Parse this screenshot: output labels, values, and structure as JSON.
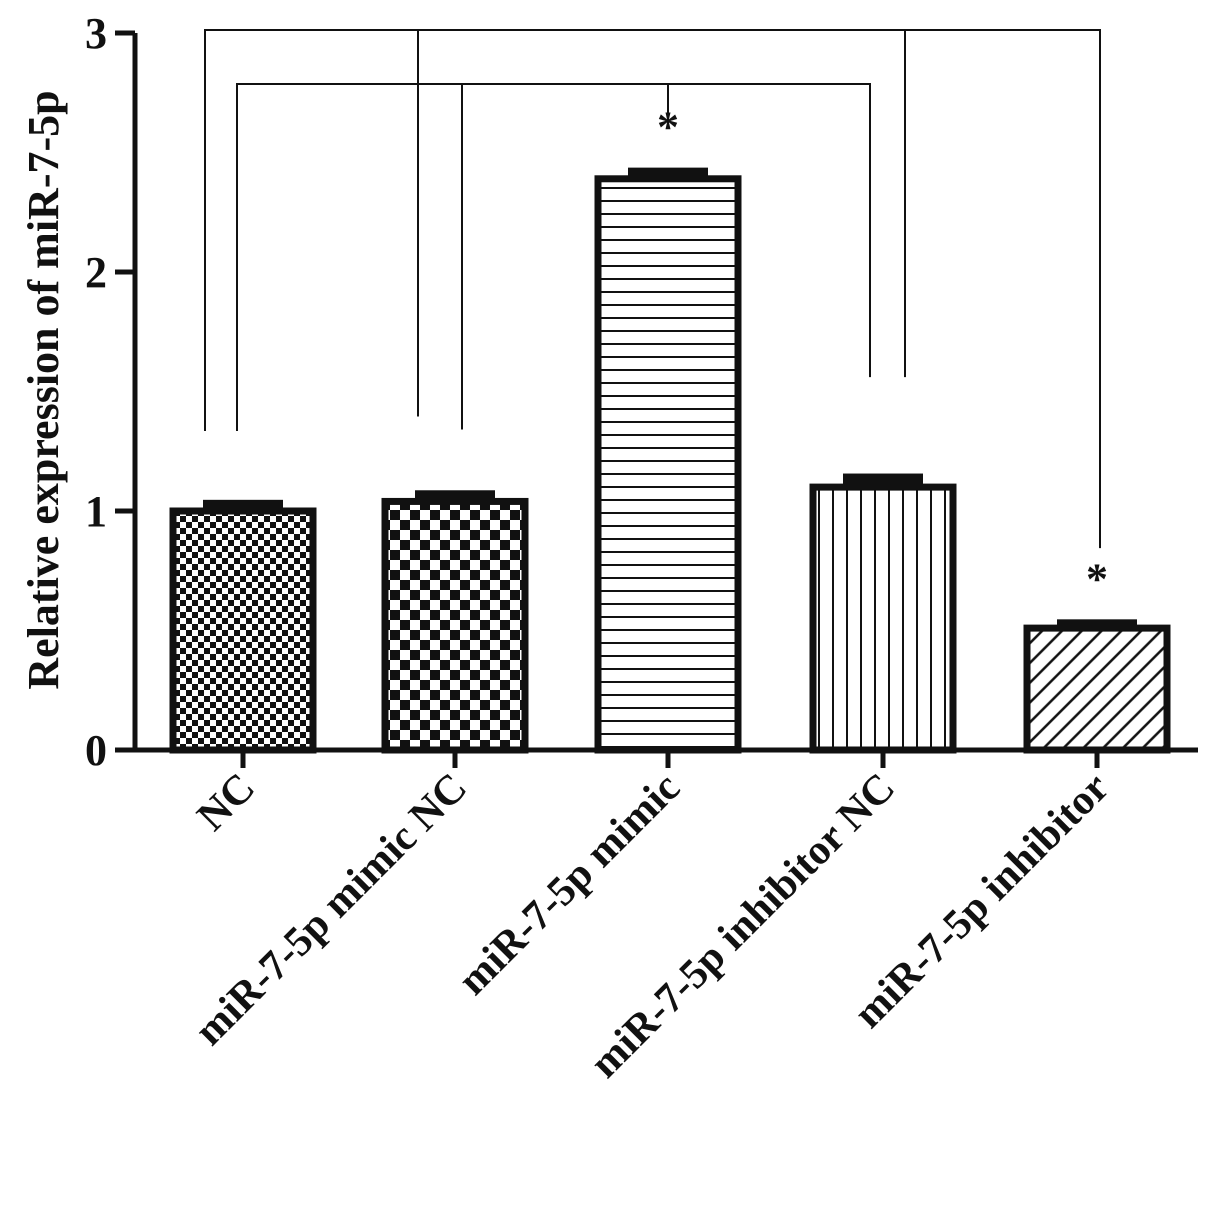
{
  "chart_data": {
    "type": "bar",
    "title": "",
    "xlabel": "",
    "ylabel": "Relative expression of miR-7-5p",
    "ylim": [
      0,
      3
    ],
    "yticks": [
      "0",
      "1",
      "2",
      "3"
    ],
    "categories": [
      "NC",
      "miR-7-5p mimic NC",
      "miR-7-5p mimic",
      "miR-7-5p inhibitor NC",
      "miR-7-5p inhibitor"
    ],
    "values": [
      1.0,
      1.04,
      2.39,
      1.1,
      0.51
    ],
    "errors": [
      0.03,
      0.03,
      0.03,
      0.04,
      0.02
    ],
    "patterns": [
      "fine-checker",
      "checker",
      "horizontal-lines",
      "vertical-lines",
      "diagonal-lines"
    ],
    "annotations": [
      "",
      "",
      "*",
      "",
      "*"
    ],
    "grid": false,
    "legend": "none",
    "colors": {
      "ink": "#111111",
      "background": "#ffffff"
    }
  }
}
